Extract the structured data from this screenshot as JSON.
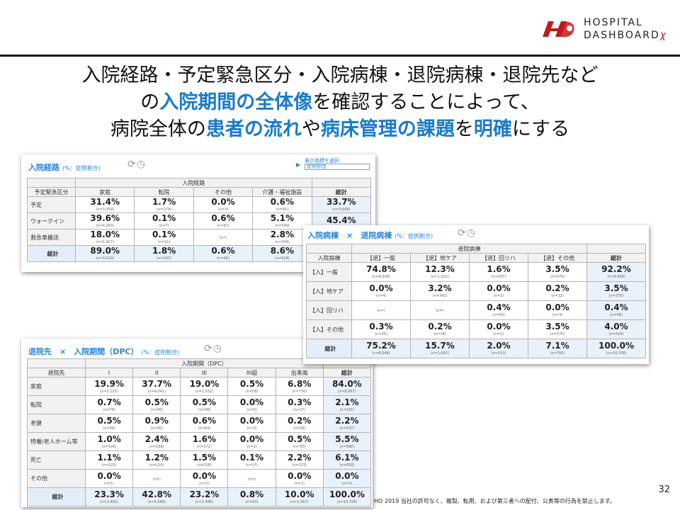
{
  "logo": {
    "line1": "HOSPITAL",
    "line2": "DASHBOARD",
    "chi": "χ"
  },
  "headline": {
    "line1": "入院経路・予定緊急区分・入院病棟・退院病棟・退院先など",
    "line2_pre": "の",
    "line2_hl": "入院期間の全体像",
    "line2_post": "を確認することによって、",
    "line3_a": "病院全体の",
    "line3_b": "患者の流れ",
    "line3_c": "や",
    "line3_d": "病床管理の課題",
    "line3_e": "を",
    "line3_f": "明確",
    "line3_g": "にする"
  },
  "panel1": {
    "title": "入院経路",
    "subtitle": "(%：症例割合)",
    "selector_label": "表示指標を選択",
    "selector_value": "症例割合",
    "corner_header": "予定緊急区分",
    "group_header": "入院経路",
    "columns": [
      "家庭",
      "転院",
      "その他",
      "介護・福祉施設",
      "総計"
    ],
    "rows": [
      {
        "label": "予定",
        "cells": [
          [
            "31.4%",
            "(n=3,359)"
          ],
          [
            "1.7%",
            "(n=179)"
          ],
          [
            "0.0%",
            "(n=3)"
          ],
          [
            "0.6%",
            "(n=65)"
          ],
          [
            "33.7%",
            "(n=3,606)"
          ]
        ]
      },
      {
        "label": "ウォークイン",
        "cells": [
          [
            "39.6%",
            "(n=4,243)"
          ],
          [
            "0.1%",
            "(n=7)"
          ],
          [
            "0.6%",
            "(n=61)"
          ],
          [
            "5.1%",
            "(n=549)"
          ],
          [
            "45.4%",
            ""
          ]
        ]
      },
      {
        "label": "救急車搬送",
        "cells": [
          [
            "18.0%",
            "(n=1,927)"
          ],
          [
            "0.1%",
            "(n=11)"
          ],
          [
            "",
            "(n=)"
          ],
          [
            "2.8%",
            "(n=304)"
          ],
          [
            "",
            ""
          ]
        ]
      },
      {
        "label": "総計",
        "cells": [
          [
            "89.0%",
            "(n=9,529)"
          ],
          [
            "1.8%",
            "(n=197)"
          ],
          [
            "0.6%",
            "(n=64)"
          ],
          [
            "8.6%",
            "(n=918)"
          ],
          [
            "",
            ""
          ]
        ]
      }
    ]
  },
  "panel2": {
    "title": "入院病棟　×　退院病棟",
    "subtitle": "(%：症例割合)",
    "corner_header": "入院病棟",
    "group_header": "退院病棟",
    "columns": [
      "【退】一般",
      "【退】地ケア",
      "【退】回リハ",
      "【退】その他",
      "総計"
    ],
    "rows": [
      {
        "label": "【入】一般",
        "cells": [
          [
            "74.8%",
            "(n=8,009)"
          ],
          [
            "12.3%",
            "(n=1,322)"
          ],
          [
            "1.6%",
            "(n=167)"
          ],
          [
            "3.5%",
            "(n=370)"
          ],
          [
            "92.2%",
            "(n=9,868)"
          ]
        ]
      },
      {
        "label": "【入】地ケア",
        "cells": [
          [
            "0.0%",
            "(n=4)"
          ],
          [
            "3.2%",
            "(n=342)"
          ],
          [
            "0.0%",
            "(n=2)"
          ],
          [
            "0.2%",
            "(n=22)"
          ],
          [
            "3.5%",
            "(n=370)"
          ]
        ]
      },
      {
        "label": "【入】回リハ",
        "cells": [
          [
            "",
            "(n=)"
          ],
          [
            "",
            "(n=)"
          ],
          [
            "0.4%",
            "(n=43)"
          ],
          [
            "0.0%",
            "(n=3)"
          ],
          [
            "0.4%",
            "(n=46)"
          ]
        ]
      },
      {
        "label": "【入】その他",
        "cells": [
          [
            "0.3%",
            "(n=35)"
          ],
          [
            "0.2%",
            "(n=18)"
          ],
          [
            "0.0%",
            "(n=1)"
          ],
          [
            "3.5%",
            "(n=370)"
          ],
          [
            "4.0%",
            "(n=424)"
          ]
        ]
      },
      {
        "label": "総計",
        "cells": [
          [
            "75.2%",
            "(n=8,048)"
          ],
          [
            "15.7%",
            "(n=1,682)"
          ],
          [
            "2.0%",
            "(n=213)"
          ],
          [
            "7.1%",
            "(n=765)"
          ],
          [
            "100.0%",
            "(n=10,708)"
          ]
        ]
      }
    ]
  },
  "panel3": {
    "title": "退院先　×　入院期間（DPC）",
    "subtitle": "(%：症例割合)",
    "corner_header": "退院先",
    "group_header": "入院期間（DPC）",
    "columns": [
      "I",
      "II",
      "III",
      "III超",
      "出来高",
      "総計"
    ],
    "rows": [
      {
        "label": "家庭",
        "cells": [
          [
            "19.9%",
            "(n=2,125)"
          ],
          [
            "37.7%",
            "(n=4,041)"
          ],
          [
            "19.0%",
            "(n=2,032)"
          ],
          [
            "0.5%",
            "(n=58)"
          ],
          [
            "6.8%",
            "(n=730)"
          ],
          [
            "84.0%",
            "(n=8,997)"
          ]
        ]
      },
      {
        "label": "転院",
        "cells": [
          [
            "0.7%",
            "(n=79)"
          ],
          [
            "0.5%",
            "(n=56)"
          ],
          [
            "0.5%",
            "(n=58)"
          ],
          [
            "0.0%",
            "(n=5)"
          ],
          [
            "0.3%",
            "(n=27)"
          ],
          [
            "2.1%",
            "(n=225)"
          ]
        ]
      },
      {
        "label": "老健",
        "cells": [
          [
            "0.5%",
            "(n=49)"
          ],
          [
            "0.9%",
            "(n=95)"
          ],
          [
            "0.6%",
            "(n=64)"
          ],
          [
            "0.0%",
            "(n=3)"
          ],
          [
            "0.2%",
            "(n=26)"
          ],
          [
            "2.2%",
            "(n=237)"
          ]
        ]
      },
      {
        "label": "特養/老人ホーム等",
        "cells": [
          [
            "1.0%",
            "(n=106)"
          ],
          [
            "2.4%",
            "(n=258)"
          ],
          [
            "1.6%",
            "(n=172)"
          ],
          [
            "0.0%",
            "(n=2)"
          ],
          [
            "0.5%",
            "(n=50)"
          ],
          [
            "5.5%",
            "(n=588)"
          ]
        ]
      },
      {
        "label": "死亡",
        "cells": [
          [
            "1.1%",
            "(n=122)"
          ],
          [
            "1.2%",
            "(n=130)"
          ],
          [
            "1.5%",
            "(n=158)"
          ],
          [
            "0.1%",
            "(n=15)"
          ],
          [
            "2.2%",
            "(n=233)"
          ],
          [
            "6.1%",
            "(n=658)"
          ]
        ]
      },
      {
        "label": "その他",
        "cells": [
          [
            "0.0%",
            "(n=1)"
          ],
          [
            "",
            "(n=)"
          ],
          [
            "0.0%",
            "(n=1)"
          ],
          [
            "",
            "(n=)"
          ],
          [
            "0.0%",
            "(n=1)"
          ],
          [
            "0.0%",
            "(n=3)"
          ]
        ]
      },
      {
        "label": "総計",
        "cells": [
          [
            "23.3%",
            "(n=2,492)"
          ],
          [
            "42.8%",
            "(n=4,580)"
          ],
          [
            "23.2%",
            "(n=2,486)"
          ],
          [
            "0.8%",
            "(n=83)"
          ],
          [
            "10.0%",
            "(n=1,067)"
          ],
          [
            "100.0%",
            "(n=10,708)"
          ]
        ]
      }
    ]
  },
  "footer": {
    "page_number": "32",
    "copyright": "HO 2019 当社の許可なく、複製、転用、および第三者への配付、公表等の行為を禁止します。"
  },
  "colors": {
    "accent": "#1a7bc9",
    "title_blue": "#2a85d6",
    "brand_red": "#c21a1a",
    "total_bg": "#e9f1fb"
  }
}
